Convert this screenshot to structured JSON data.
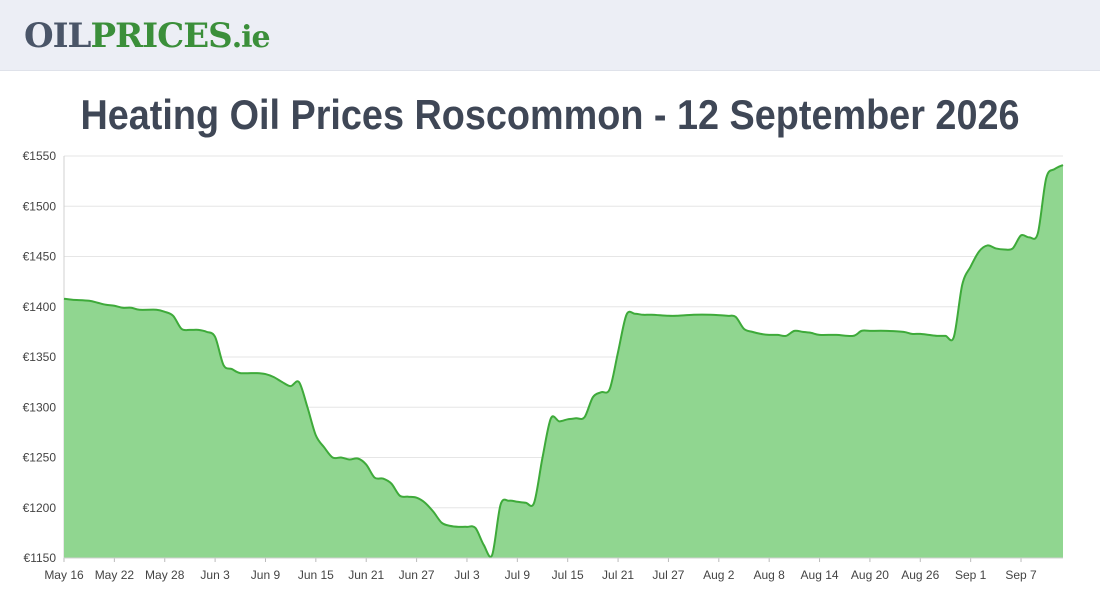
{
  "header": {
    "logo_oil": "OIL",
    "logo_prices": "PRICES",
    "logo_tld": ".ie"
  },
  "page": {
    "title": "Heating Oil Prices Roscommon - 12 September 2026"
  },
  "colors": {
    "line": "#3eaa3a",
    "area": "#90d690",
    "grid": "#e6e6e6"
  },
  "chart_data": {
    "type": "area",
    "title": "",
    "xlabel": "",
    "ylabel": "",
    "ylim": [
      1150,
      1550
    ],
    "y_ticks": [
      "€1150",
      "€1200",
      "€1250",
      "€1300",
      "€1350",
      "€1400",
      "€1450",
      "€1500",
      "€1550"
    ],
    "y_tick_values": [
      1150,
      1200,
      1250,
      1300,
      1350,
      1400,
      1450,
      1500,
      1550
    ],
    "x_range": [
      "2026-05-16",
      "2026-09-12"
    ],
    "x_ticks": [
      {
        "label": "May 16",
        "date": "2026-05-16"
      },
      {
        "label": "May 22",
        "date": "2026-05-22"
      },
      {
        "label": "May 28",
        "date": "2026-05-28"
      },
      {
        "label": "Jun 3",
        "date": "2026-06-03"
      },
      {
        "label": "Jun 9",
        "date": "2026-06-09"
      },
      {
        "label": "Jun 15",
        "date": "2026-06-15"
      },
      {
        "label": "Jun 21",
        "date": "2026-06-21"
      },
      {
        "label": "Jun 27",
        "date": "2026-06-27"
      },
      {
        "label": "Jul 3",
        "date": "2026-07-03"
      },
      {
        "label": "Jul 9",
        "date": "2026-07-09"
      },
      {
        "label": "Jul 15",
        "date": "2026-07-15"
      },
      {
        "label": "Jul 21",
        "date": "2026-07-21"
      },
      {
        "label": "Jul 27",
        "date": "2026-07-27"
      },
      {
        "label": "Aug 2",
        "date": "2026-08-02"
      },
      {
        "label": "Aug 8",
        "date": "2026-08-08"
      },
      {
        "label": "Aug 14",
        "date": "2026-08-14"
      },
      {
        "label": "Aug 20",
        "date": "2026-08-20"
      },
      {
        "label": "Aug 26",
        "date": "2026-08-26"
      },
      {
        "label": "Sep 1",
        "date": "2026-09-01"
      },
      {
        "label": "Sep 7",
        "date": "2026-09-07"
      }
    ],
    "grid": true,
    "legend": "none",
    "series": [
      {
        "points": [
          [
            "2026-05-16",
            1408
          ],
          [
            "2026-05-17",
            1407
          ],
          [
            "2026-05-19",
            1406
          ],
          [
            "2026-05-20",
            1404
          ],
          [
            "2026-05-21",
            1402
          ],
          [
            "2026-05-22",
            1401
          ],
          [
            "2026-05-23",
            1399
          ],
          [
            "2026-05-24",
            1399
          ],
          [
            "2026-05-25",
            1397
          ],
          [
            "2026-05-27",
            1397
          ],
          [
            "2026-05-28",
            1395
          ],
          [
            "2026-05-29",
            1391
          ],
          [
            "2026-05-30",
            1378
          ],
          [
            "2026-05-31",
            1377
          ],
          [
            "2026-06-01",
            1377
          ],
          [
            "2026-06-02",
            1375
          ],
          [
            "2026-06-03",
            1370
          ],
          [
            "2026-06-04",
            1342
          ],
          [
            "2026-06-05",
            1338
          ],
          [
            "2026-06-06",
            1334
          ],
          [
            "2026-06-08",
            1334
          ],
          [
            "2026-06-09",
            1333
          ],
          [
            "2026-06-10",
            1330
          ],
          [
            "2026-06-11",
            1325
          ],
          [
            "2026-06-12",
            1321
          ],
          [
            "2026-06-13",
            1325
          ],
          [
            "2026-06-14",
            1300
          ],
          [
            "2026-06-15",
            1272
          ],
          [
            "2026-06-16",
            1260
          ],
          [
            "2026-06-17",
            1250
          ],
          [
            "2026-06-18",
            1250
          ],
          [
            "2026-06-19",
            1248
          ],
          [
            "2026-06-20",
            1249
          ],
          [
            "2026-06-21",
            1243
          ],
          [
            "2026-06-22",
            1230
          ],
          [
            "2026-06-23",
            1229
          ],
          [
            "2026-06-24",
            1224
          ],
          [
            "2026-06-25",
            1212
          ],
          [
            "2026-06-26",
            1211
          ],
          [
            "2026-06-27",
            1210
          ],
          [
            "2026-06-28",
            1205
          ],
          [
            "2026-06-29",
            1196
          ],
          [
            "2026-06-30",
            1185
          ],
          [
            "2026-07-01",
            1182
          ],
          [
            "2026-07-02",
            1181
          ],
          [
            "2026-07-03",
            1181
          ],
          [
            "2026-07-04",
            1180
          ],
          [
            "2026-07-05",
            1163
          ],
          [
            "2026-07-06",
            1153
          ],
          [
            "2026-07-07",
            1203
          ],
          [
            "2026-07-08",
            1207
          ],
          [
            "2026-07-09",
            1206
          ],
          [
            "2026-07-10",
            1205
          ],
          [
            "2026-07-11",
            1205
          ],
          [
            "2026-07-12",
            1250
          ],
          [
            "2026-07-13",
            1289
          ],
          [
            "2026-07-14",
            1286
          ],
          [
            "2026-07-15",
            1288
          ],
          [
            "2026-07-16",
            1289
          ],
          [
            "2026-07-17",
            1290
          ],
          [
            "2026-07-18",
            1310
          ],
          [
            "2026-07-19",
            1315
          ],
          [
            "2026-07-20",
            1318
          ],
          [
            "2026-07-21",
            1355
          ],
          [
            "2026-07-22",
            1392
          ],
          [
            "2026-07-23",
            1393
          ],
          [
            "2026-07-24",
            1392
          ],
          [
            "2026-07-25",
            1392
          ],
          [
            "2026-07-27",
            1391
          ],
          [
            "2026-07-28",
            1391
          ],
          [
            "2026-07-30",
            1392
          ],
          [
            "2026-08-01",
            1392
          ],
          [
            "2026-08-03",
            1391
          ],
          [
            "2026-08-04",
            1390
          ],
          [
            "2026-08-05",
            1378
          ],
          [
            "2026-08-06",
            1375
          ],
          [
            "2026-08-07",
            1373
          ],
          [
            "2026-08-08",
            1372
          ],
          [
            "2026-08-09",
            1372
          ],
          [
            "2026-08-10",
            1371
          ],
          [
            "2026-08-11",
            1376
          ],
          [
            "2026-08-12",
            1375
          ],
          [
            "2026-08-13",
            1374
          ],
          [
            "2026-08-14",
            1372
          ],
          [
            "2026-08-16",
            1372
          ],
          [
            "2026-08-18",
            1371
          ],
          [
            "2026-08-19",
            1376
          ],
          [
            "2026-08-20",
            1376
          ],
          [
            "2026-08-22",
            1376
          ],
          [
            "2026-08-24",
            1375
          ],
          [
            "2026-08-25",
            1373
          ],
          [
            "2026-08-26",
            1373
          ],
          [
            "2026-08-27",
            1372
          ],
          [
            "2026-08-28",
            1371
          ],
          [
            "2026-08-29",
            1371
          ],
          [
            "2026-08-30",
            1370
          ],
          [
            "2026-08-31",
            1422
          ],
          [
            "2026-09-01",
            1440
          ],
          [
            "2026-09-02",
            1455
          ],
          [
            "2026-09-03",
            1461
          ],
          [
            "2026-09-04",
            1458
          ],
          [
            "2026-09-05",
            1457
          ],
          [
            "2026-09-06",
            1458
          ],
          [
            "2026-09-07",
            1471
          ],
          [
            "2026-09-08",
            1469
          ],
          [
            "2026-09-09",
            1473
          ],
          [
            "2026-09-10",
            1528
          ],
          [
            "2026-09-11",
            1537
          ],
          [
            "2026-09-12",
            1541
          ]
        ]
      }
    ]
  }
}
